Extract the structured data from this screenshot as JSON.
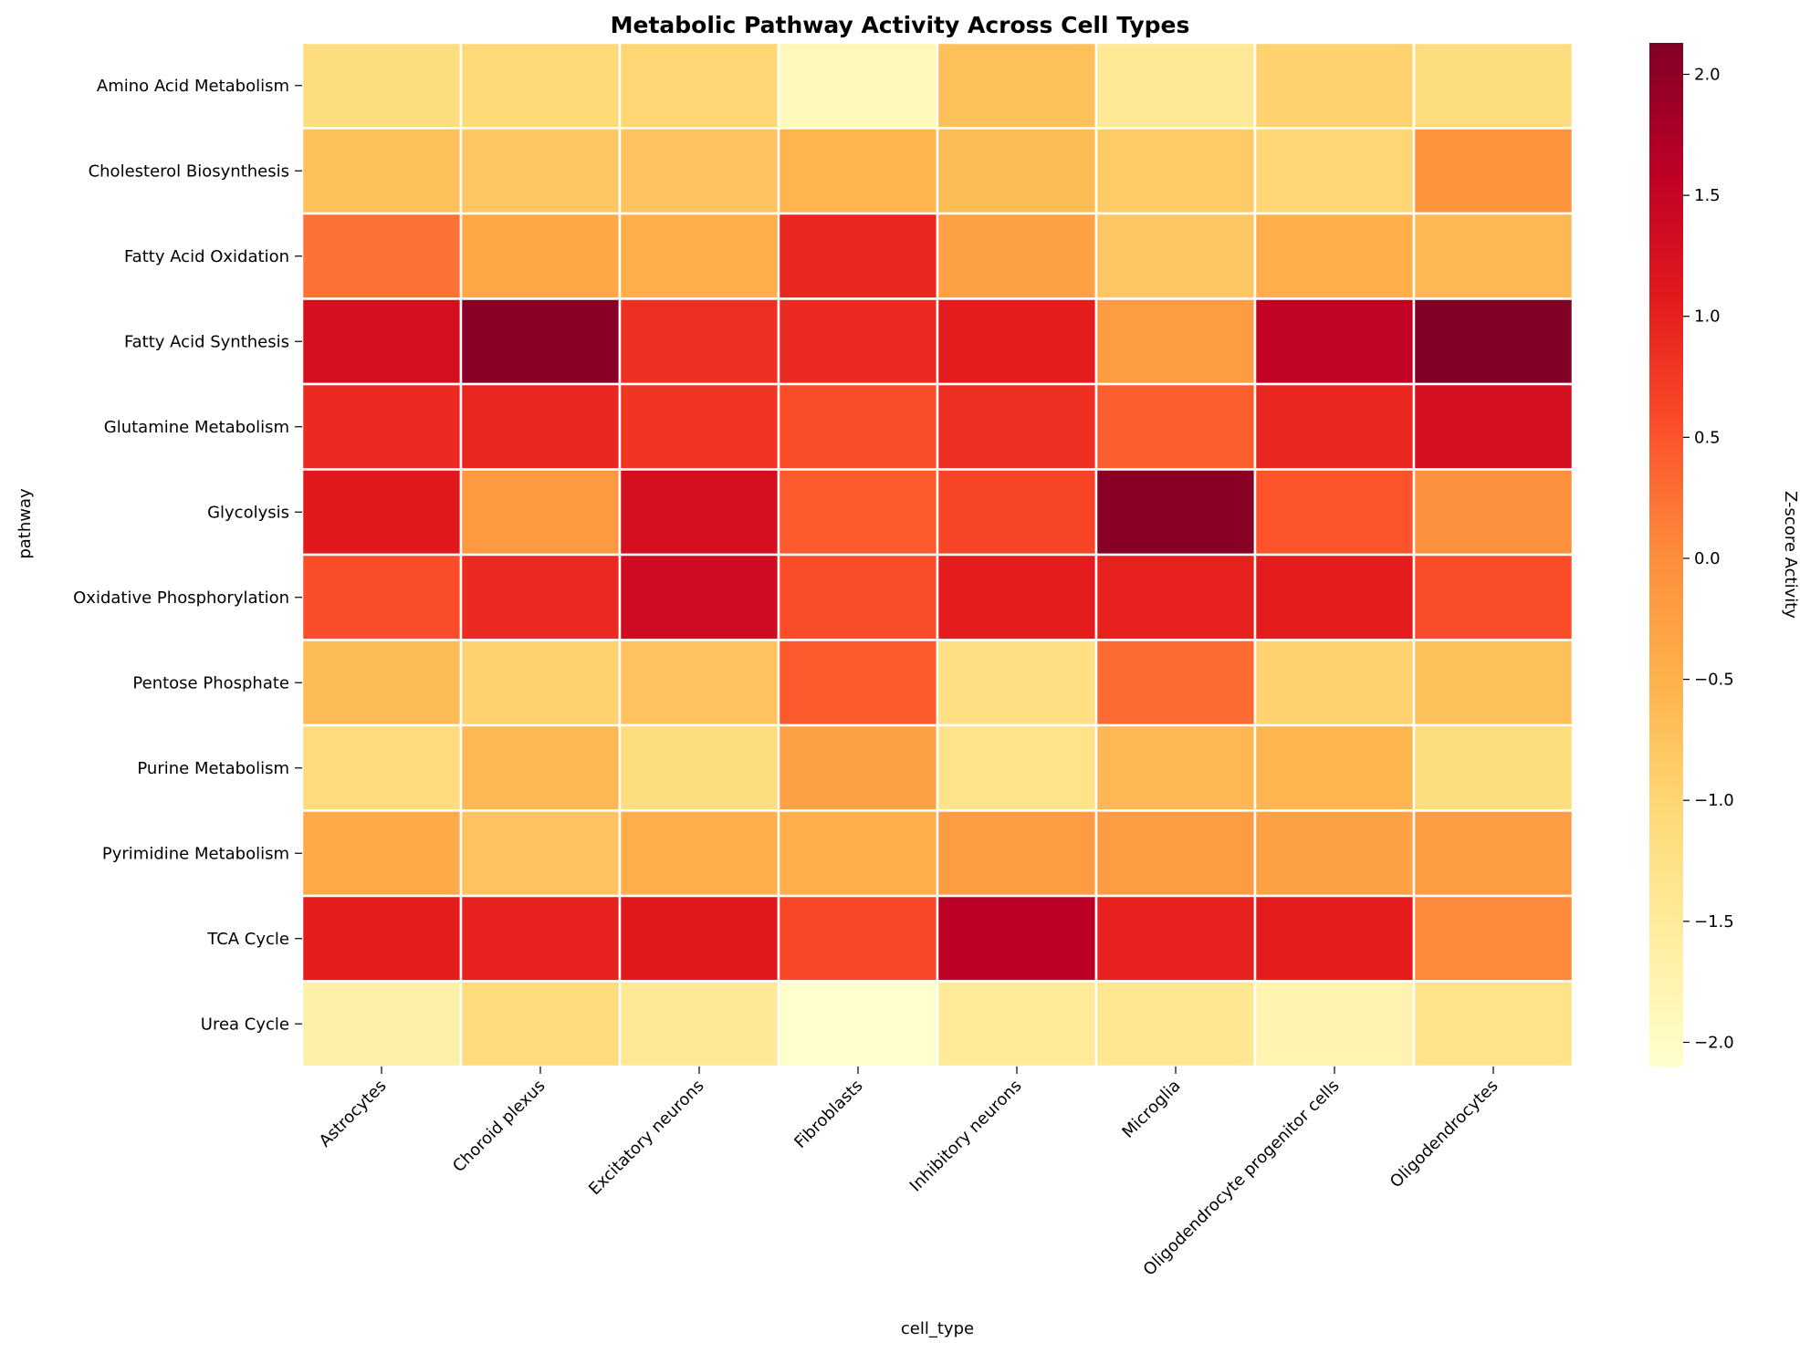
{
  "chart_data": {
    "type": "heatmap",
    "title": "Metabolic Pathway Activity Across Cell Types",
    "xlabel": "cell_type",
    "ylabel": "pathway",
    "colorbar_label": "Z-score Activity",
    "colormap": "YlOrRd",
    "vmin": -2.1,
    "vmax": 2.13,
    "colorbar_ticks": [
      -2.0,
      -1.5,
      -1.0,
      -0.5,
      0.0,
      0.5,
      1.0,
      1.5,
      2.0
    ],
    "colorbar_tick_labels": [
      "−2.0",
      "−1.5",
      "−1.0",
      "−0.5",
      "0.0",
      "0.5",
      "1.0",
      "1.5",
      "2.0"
    ],
    "columns": [
      "Astrocytes",
      "Choroid plexus",
      "Excitatory neurons",
      "Fibroblasts",
      "Inhibitory neurons",
      "Microglia",
      "Oligodendrocyte progenitor cells",
      "Oligodendrocytes"
    ],
    "rows": [
      "Amino Acid Metabolism",
      "Cholesterol Biosynthesis",
      "Fatty Acid Oxidation",
      "Fatty Acid Synthesis",
      "Glutamine Metabolism",
      "Glycolysis",
      "Oxidative Phosphorylation",
      "Pentose Phosphate",
      "Purine Metabolism",
      "Pyrimidine Metabolism",
      "TCA Cycle",
      "Urea Cycle"
    ],
    "values": [
      [
        -1.15,
        -1.05,
        -1.0,
        -1.9,
        -0.7,
        -1.45,
        -0.95,
        -1.15
      ],
      [
        -0.7,
        -0.8,
        -0.75,
        -0.55,
        -0.65,
        -0.85,
        -1.0,
        -0.1
      ],
      [
        0.25,
        -0.35,
        -0.45,
        0.95,
        -0.25,
        -0.8,
        -0.45,
        -0.6
      ],
      [
        1.3,
        2.05,
        0.85,
        0.9,
        1.05,
        -0.2,
        1.55,
        2.13
      ],
      [
        0.9,
        0.95,
        0.8,
        0.55,
        0.85,
        0.4,
        0.95,
        1.3
      ],
      [
        1.1,
        -0.15,
        1.3,
        0.45,
        0.65,
        2.05,
        0.5,
        -0.05
      ],
      [
        0.55,
        0.9,
        1.35,
        0.55,
        1.05,
        1.0,
        1.05,
        0.55
      ],
      [
        -0.65,
        -0.95,
        -0.75,
        0.45,
        -1.2,
        0.3,
        -0.95,
        -0.7
      ],
      [
        -1.1,
        -0.6,
        -1.15,
        -0.25,
        -1.3,
        -0.6,
        -0.55,
        -1.15
      ],
      [
        -0.4,
        -0.75,
        -0.45,
        -0.45,
        -0.2,
        -0.2,
        -0.25,
        -0.2
      ],
      [
        1.05,
        1.0,
        1.1,
        0.6,
        1.6,
        1.0,
        1.05,
        0.05
      ],
      [
        -1.65,
        -1.1,
        -1.45,
        -2.1,
        -1.5,
        -1.4,
        -1.75,
        -1.3
      ]
    ]
  }
}
